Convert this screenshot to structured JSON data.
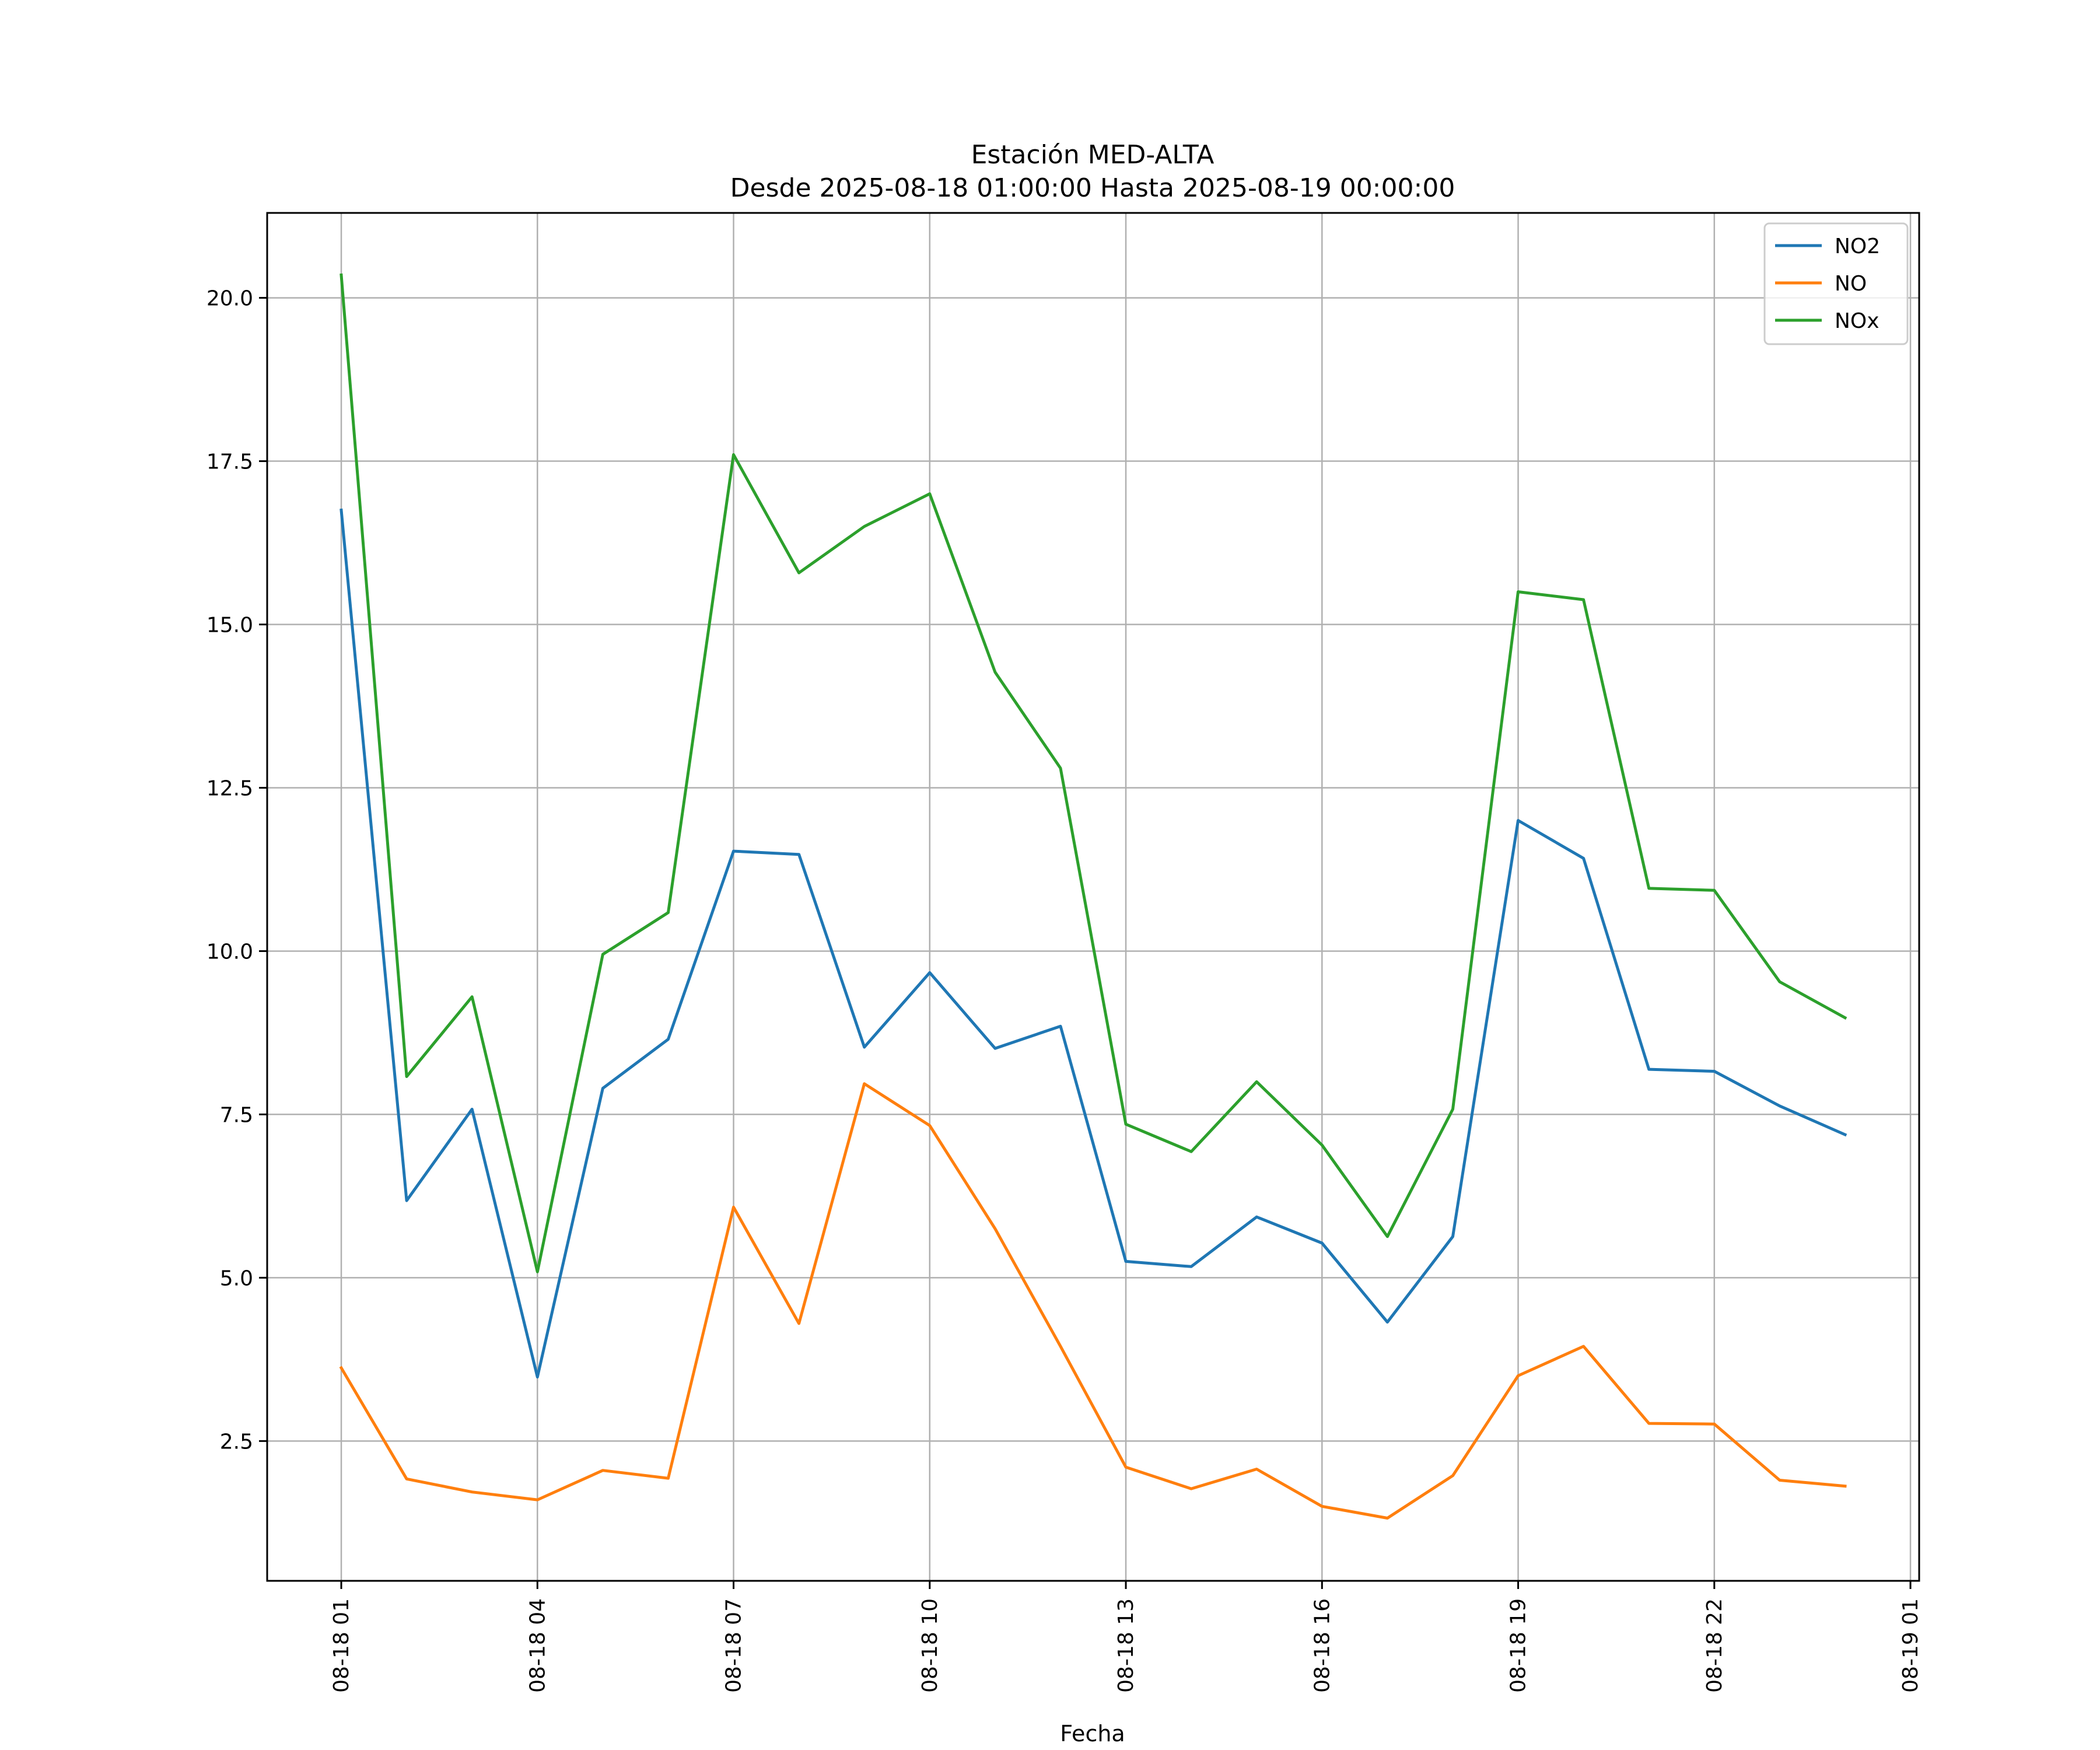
{
  "chart_data": {
    "type": "line",
    "title": "Estación MED-ALTA",
    "subtitle": "Desde 2025-08-18 01:00:00 Hasta 2025-08-19 00:00:00",
    "xlabel": "Fecha",
    "ylabel": "",
    "x": [
      "08-18 01",
      "08-18 02",
      "08-18 03",
      "08-18 04",
      "08-18 05",
      "08-18 06",
      "08-18 07",
      "08-18 08",
      "08-18 09",
      "08-18 10",
      "08-18 11",
      "08-18 12",
      "08-18 13",
      "08-18 14",
      "08-18 15",
      "08-18 16",
      "08-18 17",
      "08-18 18",
      "08-18 19",
      "08-18 20",
      "08-18 21",
      "08-18 22",
      "08-18 23",
      "08-19 00"
    ],
    "x_ticks": [
      "08-18 01",
      "08-18 04",
      "08-18 07",
      "08-18 10",
      "08-18 13",
      "08-18 16",
      "08-18 19",
      "08-18 22",
      "08-19 01"
    ],
    "xlim": [
      "08-17 23:52",
      "08-19 01:08"
    ],
    "y_ticks": [
      2.5,
      5.0,
      7.5,
      10.0,
      12.5,
      15.0,
      17.5,
      20.0
    ],
    "y_tick_labels": [
      "2.5",
      "5.0",
      "7.5",
      "10.0",
      "12.5",
      "15.0",
      "17.5",
      "20.0"
    ],
    "ylim": [
      0.36,
      21.3
    ],
    "grid": true,
    "legend_position": "top-right",
    "series": [
      {
        "name": "NO2",
        "color": "#1f77b4",
        "values": [
          16.75,
          6.18,
          7.58,
          3.48,
          7.9,
          8.65,
          11.53,
          11.48,
          8.53,
          9.67,
          8.51,
          8.85,
          5.25,
          5.17,
          5.93,
          5.53,
          4.32,
          5.63,
          12.0,
          11.42,
          8.19,
          8.16,
          7.63,
          7.19
        ]
      },
      {
        "name": "NO",
        "color": "#ff7f0e",
        "values": [
          3.62,
          1.92,
          1.72,
          1.6,
          2.05,
          1.93,
          6.08,
          4.3,
          7.97,
          7.33,
          5.75,
          3.95,
          2.1,
          1.77,
          2.07,
          1.5,
          1.32,
          1.97,
          3.5,
          3.95,
          2.77,
          2.76,
          1.9,
          1.81
        ]
      },
      {
        "name": "NOx",
        "color": "#2ca02c",
        "values": [
          20.35,
          8.08,
          9.3,
          5.09,
          9.95,
          10.59,
          17.6,
          15.79,
          16.5,
          17.0,
          14.27,
          12.8,
          7.35,
          6.93,
          8.0,
          7.03,
          5.63,
          7.58,
          15.5,
          15.38,
          10.96,
          10.93,
          9.53,
          8.98
        ]
      }
    ]
  }
}
